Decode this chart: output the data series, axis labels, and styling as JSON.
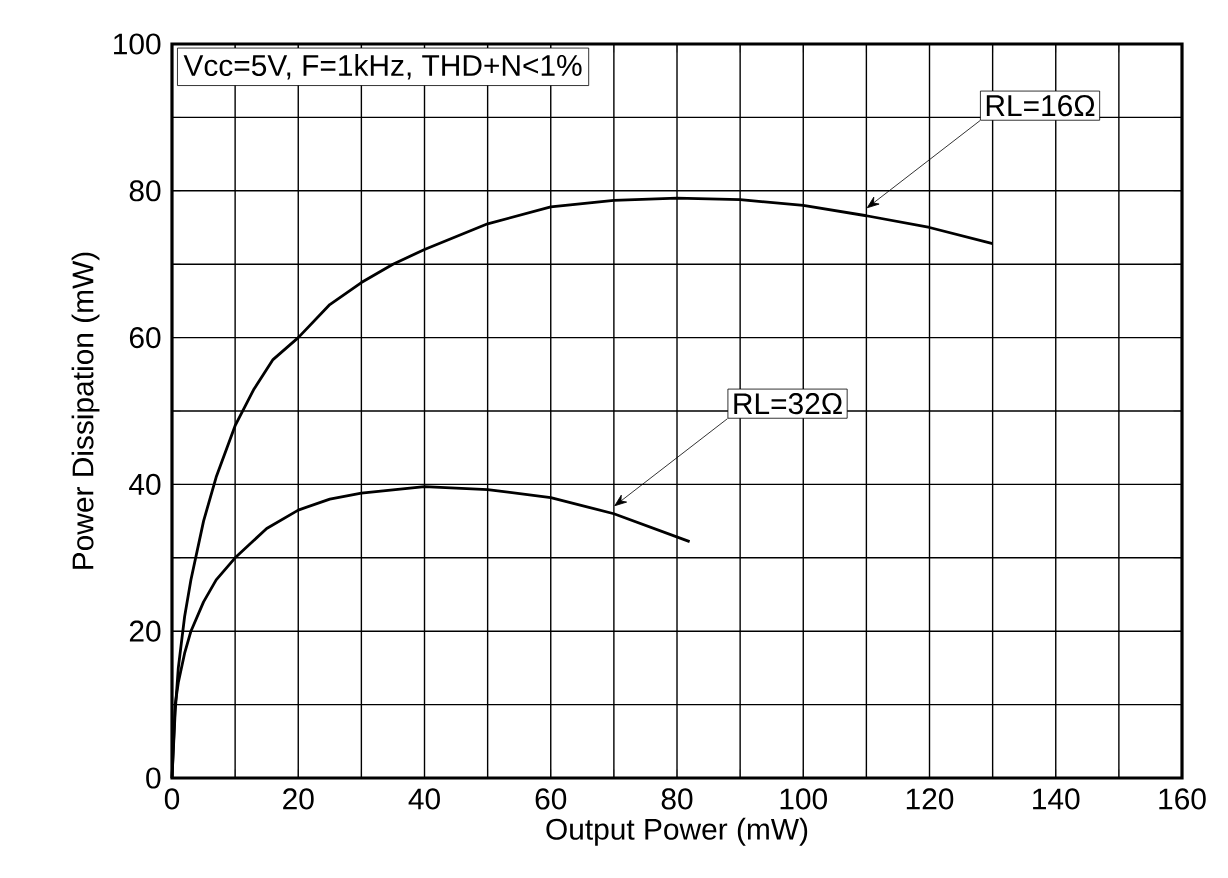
{
  "chart_data": {
    "type": "line",
    "xlabel": "Output Power (mW)",
    "ylabel": "Power Dissipation (mW)",
    "annotations": [
      "Vcc=5V, F=1kHz, THD+N<1%"
    ],
    "xlim": [
      0,
      160
    ],
    "ylim": [
      0,
      100
    ],
    "xticks": [
      0,
      {
        "value": 10,
        "label": null
      },
      20,
      {
        "value": 30,
        "label": null
      },
      40,
      {
        "value": 50,
        "label": null
      },
      60,
      {
        "value": 70,
        "label": null
      },
      80,
      {
        "value": 90,
        "label": null
      },
      100,
      {
        "value": 110,
        "label": null
      },
      120,
      {
        "value": 130,
        "label": null
      },
      140,
      {
        "value": 150,
        "label": null
      },
      160
    ],
    "yticks": [
      0,
      {
        "value": 10,
        "label": null
      },
      20,
      {
        "value": 30,
        "label": null
      },
      40,
      {
        "value": 50,
        "label": null
      },
      60,
      {
        "value": 70,
        "label": null
      },
      80,
      {
        "value": 90,
        "label": null
      },
      100
    ],
    "grid": true,
    "marker": "none",
    "line_style": "solid",
    "series": [
      {
        "name": "RL=16Ω",
        "color": "#000000",
        "x": [
          0,
          0.5,
          1,
          2,
          3,
          5,
          7,
          10,
          13,
          16,
          20,
          25,
          30,
          35,
          40,
          50,
          60,
          70,
          80,
          90,
          100,
          110,
          120,
          130
        ],
        "values": [
          0,
          9,
          15,
          22,
          27,
          35,
          41,
          48,
          53,
          57,
          60,
          64.5,
          67.5,
          70,
          72,
          75.5,
          77.8,
          78.7,
          79,
          78.8,
          78,
          76.6,
          75,
          72.8
        ]
      },
      {
        "name": "RL=32Ω",
        "color": "#000000",
        "x": [
          0,
          0.5,
          1,
          2,
          3,
          5,
          7,
          10,
          15,
          20,
          25,
          30,
          40,
          50,
          60,
          70,
          82
        ],
        "values": [
          0,
          10,
          13,
          17,
          20,
          24,
          27,
          30,
          34,
          36.5,
          38,
          38.8,
          39.7,
          39.3,
          38.2,
          36,
          32.2
        ]
      }
    ]
  }
}
